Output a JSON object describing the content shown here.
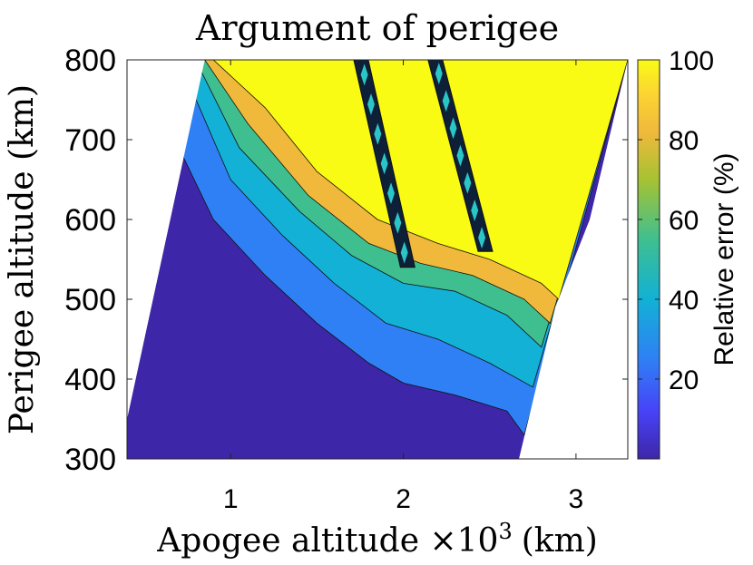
{
  "chart_data": {
    "type": "heatmap",
    "subtype": "filled-contour",
    "title": "Argument of perigee",
    "xlabel": "Apogee altitude ×10³ (km)",
    "xlabel_main": "Apogee altitude ×10",
    "xlabel_exp": "3",
    "xlabel_unit": "(km)",
    "ylabel": "Perigee altitude (km)",
    "xlim": [
      0.4,
      3.3
    ],
    "ylim": [
      300,
      800
    ],
    "xticks": [
      1,
      2,
      3
    ],
    "xtick_labels": [
      "1",
      "2",
      "3"
    ],
    "yticks": [
      300,
      400,
      500,
      600,
      700,
      800
    ],
    "ytick_labels": [
      "300",
      "400",
      "500",
      "600",
      "700",
      "800"
    ],
    "colorbar": {
      "label": "Relative error (%)",
      "range": [
        0,
        100
      ],
      "ticks": [
        20,
        40,
        60,
        80,
        100
      ],
      "tick_labels": [
        "20",
        "40",
        "60",
        "80",
        "100"
      ],
      "colormap": [
        "#3e26a8",
        "#4743f8",
        "#2f80f5",
        "#12b1d5",
        "#3fbf8f",
        "#a6c232",
        "#f0b93c",
        "#fcd631",
        "#f9fb15"
      ]
    },
    "valid_region": {
      "left_edge": [
        [
          0.4,
          350
        ],
        [
          0.85,
          800
        ]
      ],
      "right_edge": [
        [
          2.67,
          300
        ],
        [
          2.88,
          490
        ],
        [
          3.08,
          600
        ],
        [
          3.3,
          800
        ]
      ]
    },
    "bands": [
      {
        "name": "dark-blue",
        "value_pct": 3,
        "boundary": [
          [
            0.7,
            690
          ],
          [
            0.9,
            600
          ],
          [
            1.2,
            530
          ],
          [
            1.5,
            470
          ],
          [
            1.8,
            420
          ],
          [
            2.0,
            395
          ],
          [
            2.3,
            380
          ],
          [
            2.6,
            360
          ],
          [
            2.7,
            330
          ]
        ]
      },
      {
        "name": "blue",
        "value_pct": 15,
        "boundary": [
          [
            0.78,
            760
          ],
          [
            1.0,
            650
          ],
          [
            1.3,
            580
          ],
          [
            1.6,
            520
          ],
          [
            1.9,
            470
          ],
          [
            2.2,
            450
          ],
          [
            2.5,
            420
          ],
          [
            2.75,
            390
          ]
        ]
      },
      {
        "name": "cyan",
        "value_pct": 40,
        "boundary": [
          [
            0.82,
            790
          ],
          [
            1.05,
            690
          ],
          [
            1.4,
            610
          ],
          [
            1.7,
            555
          ],
          [
            2.0,
            520
          ],
          [
            2.3,
            510
          ],
          [
            2.6,
            480
          ],
          [
            2.8,
            440
          ]
        ]
      },
      {
        "name": "green",
        "value_pct": 65,
        "boundary": [
          [
            0.85,
            800
          ],
          [
            1.1,
            720
          ],
          [
            1.45,
            630
          ],
          [
            1.8,
            570
          ],
          [
            2.1,
            545
          ],
          [
            2.4,
            530
          ],
          [
            2.7,
            500
          ],
          [
            2.85,
            470
          ]
        ]
      },
      {
        "name": "orange",
        "value_pct": 85,
        "boundary": [
          [
            0.9,
            800
          ],
          [
            1.2,
            740
          ],
          [
            1.5,
            660
          ],
          [
            1.85,
            600
          ],
          [
            2.2,
            570
          ],
          [
            2.5,
            550
          ],
          [
            2.8,
            520
          ],
          [
            2.9,
            500
          ]
        ]
      },
      {
        "name": "yellow",
        "value_pct": 100,
        "boundary": "remaining region"
      }
    ],
    "diagonal_streaks": [
      {
        "start": [
          1.75,
          800
        ],
        "end": [
          2.02,
          540
        ]
      },
      {
        "start": [
          2.18,
          800
        ],
        "end": [
          2.47,
          560
        ]
      }
    ]
  }
}
